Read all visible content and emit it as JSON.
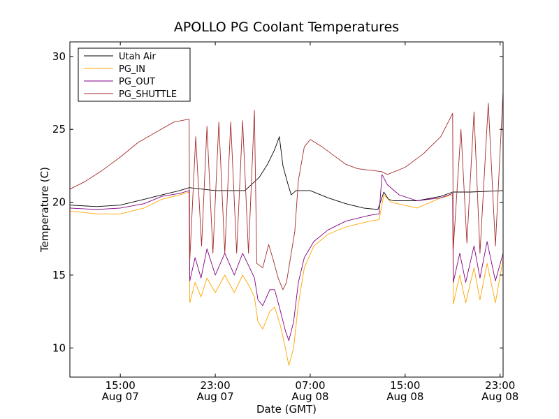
{
  "chart_data": {
    "type": "line",
    "title": "APOLLO PG Coolant Temperatures",
    "xlabel": "Date (GMT)",
    "ylabel": "Temperature (C)",
    "x_unit": "hours since 2000-08-07 00:00 GMT (estimated)",
    "xlim": [
      10.75,
      47.25
    ],
    "ylim": [
      8,
      31
    ],
    "yticks": [
      10,
      15,
      20,
      25,
      30
    ],
    "xticks": [
      {
        "x": 15,
        "line1": "15:00",
        "line2": "Aug 07"
      },
      {
        "x": 23,
        "line1": "23:00",
        "line2": "Aug 07"
      },
      {
        "x": 31,
        "line1": "07:00",
        "line2": "Aug 08"
      },
      {
        "x": 39,
        "line1": "15:00",
        "line2": "Aug 08"
      },
      {
        "x": 47,
        "line1": "23:00",
        "line2": "Aug 08"
      }
    ],
    "legend_position": "top-left",
    "series": [
      {
        "name": "Utah Air",
        "color": "#000000",
        "points": [
          [
            10.75,
            19.8
          ],
          [
            13,
            19.7
          ],
          [
            15,
            19.8
          ],
          [
            17,
            20.2
          ],
          [
            18.5,
            20.5
          ],
          [
            20,
            20.8
          ],
          [
            20.8,
            21
          ],
          [
            23,
            20.8
          ],
          [
            25.5,
            20.8
          ],
          [
            26.7,
            21.7
          ],
          [
            27.4,
            22.6
          ],
          [
            28,
            23.6
          ],
          [
            28.4,
            24.5
          ],
          [
            28.7,
            22.5
          ],
          [
            29.1,
            21.3
          ],
          [
            29.4,
            20.5
          ],
          [
            29.8,
            20.8
          ],
          [
            31,
            20.8
          ],
          [
            32.5,
            20.3
          ],
          [
            34,
            19.9
          ],
          [
            35.5,
            19.6
          ],
          [
            36.7,
            19.5
          ],
          [
            37.2,
            20.7
          ],
          [
            37.6,
            20.2
          ],
          [
            38,
            20.1
          ],
          [
            40,
            20.1
          ],
          [
            42,
            20.4
          ],
          [
            43,
            20.7
          ],
          [
            44.5,
            20.7
          ],
          [
            47.25,
            20.8
          ]
        ]
      },
      {
        "name": "PG_IN",
        "color": "#ffa500",
        "points": [
          [
            10.75,
            19.4
          ],
          [
            13,
            19.2
          ],
          [
            15,
            19.2
          ],
          [
            17,
            19.6
          ],
          [
            18.5,
            20.2
          ],
          [
            20,
            20.5
          ],
          [
            20.8,
            20.7
          ],
          [
            20.85,
            13.1
          ],
          [
            21.3,
            14.5
          ],
          [
            21.8,
            13.5
          ],
          [
            22.3,
            14.8
          ],
          [
            23,
            13.8
          ],
          [
            23.8,
            15
          ],
          [
            24.6,
            13.8
          ],
          [
            25.3,
            15
          ],
          [
            25.9,
            14.2
          ],
          [
            26.3,
            13.5
          ],
          [
            26.6,
            11.8
          ],
          [
            27,
            11.3
          ],
          [
            27.6,
            12.5
          ],
          [
            28,
            12.8
          ],
          [
            28.5,
            11.5
          ],
          [
            28.9,
            10
          ],
          [
            29.2,
            8.8
          ],
          [
            29.6,
            10
          ],
          [
            30,
            13
          ],
          [
            30.5,
            15.5
          ],
          [
            31.3,
            17
          ],
          [
            32.5,
            17.8
          ],
          [
            34,
            18.3
          ],
          [
            36,
            18.7
          ],
          [
            36.8,
            18.8
          ],
          [
            37.2,
            20.5
          ],
          [
            37.8,
            20
          ],
          [
            40,
            19.6
          ],
          [
            42,
            20.3
          ],
          [
            43,
            20.5
          ],
          [
            43.05,
            13
          ],
          [
            43.6,
            15
          ],
          [
            44.1,
            13.1
          ],
          [
            44.8,
            15.5
          ],
          [
            45.3,
            13.3
          ],
          [
            45.9,
            15.8
          ],
          [
            46.6,
            13.1
          ],
          [
            47.25,
            16.1
          ]
        ]
      },
      {
        "name": "PG_OUT",
        "color": "#800080",
        "points": [
          [
            10.75,
            19.6
          ],
          [
            13,
            19.5
          ],
          [
            15,
            19.6
          ],
          [
            17,
            19.9
          ],
          [
            18.5,
            20.4
          ],
          [
            20,
            20.6
          ],
          [
            20.8,
            20.8
          ],
          [
            20.85,
            14.6
          ],
          [
            21.3,
            16.2
          ],
          [
            21.8,
            14.8
          ],
          [
            22.3,
            16.8
          ],
          [
            23,
            15
          ],
          [
            23.8,
            16.5
          ],
          [
            24.6,
            15
          ],
          [
            25.3,
            16.5
          ],
          [
            25.9,
            15.5
          ],
          [
            26.3,
            14.8
          ],
          [
            26.6,
            13.3
          ],
          [
            27,
            12.9
          ],
          [
            27.6,
            14
          ],
          [
            28,
            14
          ],
          [
            28.5,
            12.5
          ],
          [
            28.9,
            11.2
          ],
          [
            29.2,
            10.5
          ],
          [
            29.6,
            11.8
          ],
          [
            30,
            14.5
          ],
          [
            30.5,
            16.2
          ],
          [
            31.3,
            17.3
          ],
          [
            32.5,
            18.1
          ],
          [
            34,
            18.7
          ],
          [
            36,
            19.1
          ],
          [
            36.8,
            19.2
          ],
          [
            37.05,
            21.9
          ],
          [
            37.5,
            21.2
          ],
          [
            38.5,
            20.5
          ],
          [
            40,
            20.1
          ],
          [
            42,
            20.3
          ],
          [
            43,
            20.6
          ],
          [
            43.05,
            14.5
          ],
          [
            43.6,
            16.5
          ],
          [
            44.1,
            14.5
          ],
          [
            44.8,
            17
          ],
          [
            45.3,
            14.8
          ],
          [
            45.9,
            17.3
          ],
          [
            46.6,
            14.6
          ],
          [
            47.25,
            16.5
          ]
        ]
      },
      {
        "name": "PG_SHUTTLE",
        "color": "#a52a2a",
        "points": [
          [
            10.75,
            20.9
          ],
          [
            12,
            21.4
          ],
          [
            13.5,
            22.2
          ],
          [
            15,
            23.1
          ],
          [
            16.5,
            24.1
          ],
          [
            18,
            24.8
          ],
          [
            19.5,
            25.5
          ],
          [
            20.8,
            25.7
          ],
          [
            20.85,
            16
          ],
          [
            21.35,
            24.5
          ],
          [
            21.85,
            17
          ],
          [
            22.3,
            25.2
          ],
          [
            22.8,
            16.5
          ],
          [
            23.3,
            25.5
          ],
          [
            23.8,
            16.5
          ],
          [
            24.3,
            25.5
          ],
          [
            24.8,
            16.5
          ],
          [
            25.3,
            25.6
          ],
          [
            25.8,
            16.5
          ],
          [
            26.3,
            26.3
          ],
          [
            26.5,
            15.8
          ],
          [
            27,
            15.5
          ],
          [
            27.5,
            17.1
          ],
          [
            27.9,
            16
          ],
          [
            28.3,
            14.8
          ],
          [
            28.7,
            14
          ],
          [
            29,
            14.5
          ],
          [
            29.3,
            16
          ],
          [
            29.7,
            18
          ],
          [
            30,
            21.5
          ],
          [
            30.5,
            23.8
          ],
          [
            31,
            24.3
          ],
          [
            32,
            23.8
          ],
          [
            33,
            23.2
          ],
          [
            34,
            22.6
          ],
          [
            35,
            22.3
          ],
          [
            36,
            22.2
          ],
          [
            37,
            22.1
          ],
          [
            37.5,
            21.9
          ],
          [
            39,
            22.4
          ],
          [
            40.5,
            23.3
          ],
          [
            42,
            24.5
          ],
          [
            43,
            26.1
          ],
          [
            43.05,
            16.8
          ],
          [
            43.7,
            25
          ],
          [
            44.2,
            17.2
          ],
          [
            44.8,
            26.2
          ],
          [
            45.3,
            16.5
          ],
          [
            46,
            26.8
          ],
          [
            46.6,
            17
          ],
          [
            47.25,
            27.6
          ]
        ]
      }
    ]
  }
}
